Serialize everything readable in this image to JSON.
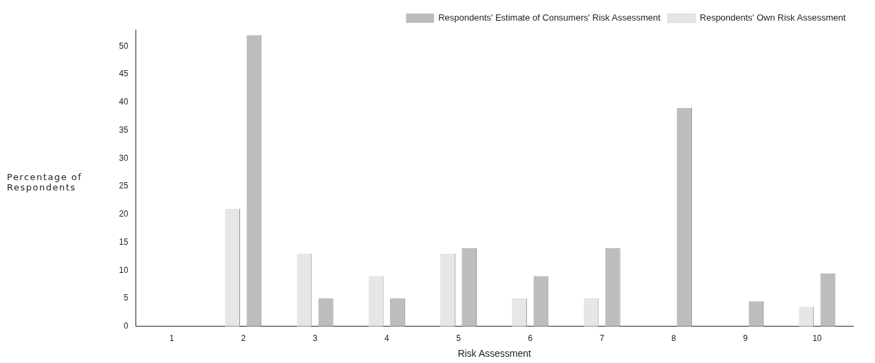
{
  "chart_data": {
    "type": "bar",
    "xlabel": "Risk Assessment",
    "ylabel": "Percentage of Respondents",
    "categories": [
      "1",
      "2",
      "3",
      "4",
      "5",
      "6",
      "7",
      "8",
      "9",
      "10"
    ],
    "series": [
      {
        "name": "Respondents' Own Risk Assessment",
        "color": "#e6e6e6",
        "values": [
          0,
          21,
          13,
          9,
          13,
          5,
          5,
          0,
          0,
          3.5
        ]
      },
      {
        "name": "Respondents' Estimate of Consumers' Risk Assessment",
        "color": "#bdbdbd",
        "values": [
          0,
          52,
          5,
          5,
          14,
          9,
          14,
          39,
          4.5,
          9.5
        ]
      }
    ],
    "ylim": [
      0,
      53
    ],
    "yticks": [
      0,
      5,
      10,
      15,
      20,
      25,
      30,
      35,
      40,
      45,
      50
    ],
    "grid": false,
    "legend": "top right"
  }
}
